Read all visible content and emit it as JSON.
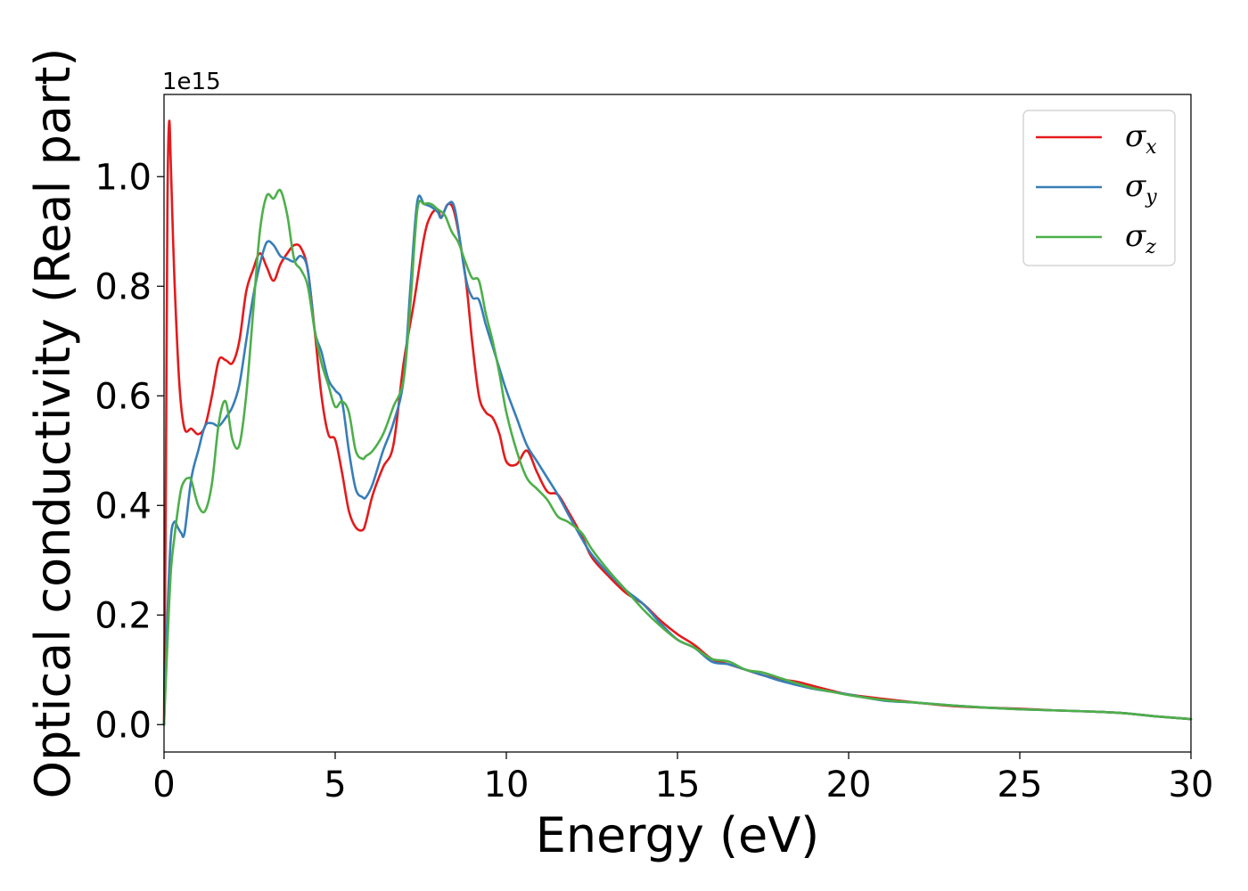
{
  "chart_data": {
    "type": "line",
    "xlabel": "Energy (eV)",
    "ylabel": "Optical conductivity (Real part)",
    "y_offset_text": "1e15",
    "xlim": [
      0,
      30
    ],
    "ylim": [
      -0.05,
      1.15
    ],
    "x_ticks": [
      "0",
      "5",
      "10",
      "15",
      "20",
      "25",
      "30"
    ],
    "x_tick_values": [
      0,
      5,
      10,
      15,
      20,
      25,
      30
    ],
    "y_ticks": [
      "0.0",
      "0.2",
      "0.4",
      "0.6",
      "0.8",
      "1.0"
    ],
    "y_tick_values": [
      0.0,
      0.2,
      0.4,
      0.6,
      0.8,
      1.0
    ],
    "grid": false,
    "legend_position": "upper right",
    "series": [
      {
        "name": "σx",
        "name_base": "σ",
        "name_sub": "x",
        "color": "#e41a1c",
        "x": [
          0,
          0.05,
          0.1,
          0.15,
          0.2,
          0.3,
          0.45,
          0.6,
          0.8,
          1.0,
          1.2,
          1.4,
          1.6,
          1.8,
          2.0,
          2.2,
          2.4,
          2.6,
          2.8,
          3.0,
          3.2,
          3.4,
          3.6,
          3.8,
          4.0,
          4.2,
          4.4,
          4.6,
          4.8,
          5.0,
          5.2,
          5.4,
          5.6,
          5.8,
          5.9,
          6.1,
          6.4,
          6.7,
          7.0,
          7.3,
          7.6,
          7.8,
          8.0,
          8.1,
          8.3,
          8.5,
          8.8,
          9.0,
          9.2,
          9.4,
          9.6,
          9.8,
          10.0,
          10.3,
          10.6,
          10.9,
          11.2,
          11.5,
          11.8,
          12.2,
          12.5,
          13.0,
          13.5,
          14.0,
          14.5,
          15.0,
          15.5,
          16.0,
          16.5,
          17.0,
          17.5,
          18.0,
          18.5,
          19.0,
          19.5,
          20.0,
          21.0,
          22.0,
          23.0,
          24.0,
          25.0,
          26.0,
          27.0,
          28.0,
          29.0,
          30.0
        ],
        "y": [
          0.0,
          0.4,
          0.95,
          1.1,
          1.02,
          0.82,
          0.62,
          0.54,
          0.54,
          0.53,
          0.545,
          0.6,
          0.665,
          0.665,
          0.66,
          0.7,
          0.79,
          0.83,
          0.86,
          0.835,
          0.81,
          0.84,
          0.86,
          0.875,
          0.87,
          0.83,
          0.72,
          0.6,
          0.53,
          0.52,
          0.46,
          0.39,
          0.36,
          0.355,
          0.37,
          0.42,
          0.47,
          0.51,
          0.66,
          0.77,
          0.89,
          0.93,
          0.94,
          0.925,
          0.95,
          0.93,
          0.82,
          0.7,
          0.6,
          0.57,
          0.56,
          0.53,
          0.48,
          0.475,
          0.5,
          0.46,
          0.425,
          0.42,
          0.39,
          0.345,
          0.305,
          0.27,
          0.24,
          0.22,
          0.19,
          0.165,
          0.145,
          0.12,
          0.11,
          0.1,
          0.09,
          0.083,
          0.078,
          0.07,
          0.062,
          0.055,
          0.047,
          0.04,
          0.034,
          0.031,
          0.029,
          0.026,
          0.024,
          0.021,
          0.015,
          0.01
        ]
      },
      {
        "name": "σy",
        "name_base": "σ",
        "name_sub": "y",
        "color": "#377eb8",
        "x": [
          0,
          0.1,
          0.2,
          0.3,
          0.4,
          0.5,
          0.6,
          0.8,
          1.0,
          1.2,
          1.4,
          1.6,
          1.8,
          2.0,
          2.2,
          2.4,
          2.6,
          2.8,
          3.0,
          3.2,
          3.4,
          3.6,
          3.8,
          4.0,
          4.2,
          4.4,
          4.6,
          4.8,
          5.0,
          5.2,
          5.4,
          5.6,
          5.8,
          5.9,
          6.1,
          6.4,
          6.7,
          7.0,
          7.2,
          7.4,
          7.6,
          7.8,
          8.0,
          8.1,
          8.3,
          8.5,
          8.8,
          9.0,
          9.2,
          9.4,
          9.6,
          9.8,
          10.0,
          10.3,
          10.6,
          10.9,
          11.2,
          11.5,
          11.8,
          12.2,
          12.5,
          13.0,
          13.5,
          14.0,
          14.5,
          15.0,
          15.5,
          16.0,
          16.5,
          17.0,
          17.5,
          18.0,
          18.5,
          19.0,
          19.5,
          20.0,
          21.0,
          22.0,
          23.0,
          24.0,
          25.0,
          26.0,
          27.0,
          28.0,
          29.0,
          30.0
        ],
        "y": [
          0.0,
          0.2,
          0.34,
          0.37,
          0.36,
          0.35,
          0.35,
          0.45,
          0.5,
          0.545,
          0.55,
          0.545,
          0.56,
          0.58,
          0.62,
          0.7,
          0.78,
          0.84,
          0.88,
          0.875,
          0.855,
          0.85,
          0.845,
          0.855,
          0.83,
          0.72,
          0.68,
          0.63,
          0.61,
          0.59,
          0.5,
          0.43,
          0.415,
          0.415,
          0.44,
          0.5,
          0.55,
          0.63,
          0.8,
          0.955,
          0.95,
          0.945,
          0.935,
          0.925,
          0.95,
          0.94,
          0.82,
          0.78,
          0.775,
          0.73,
          0.69,
          0.65,
          0.61,
          0.56,
          0.51,
          0.48,
          0.45,
          0.42,
          0.385,
          0.34,
          0.31,
          0.275,
          0.245,
          0.22,
          0.185,
          0.155,
          0.14,
          0.115,
          0.11,
          0.1,
          0.09,
          0.08,
          0.072,
          0.065,
          0.06,
          0.055,
          0.044,
          0.04,
          0.035,
          0.031,
          0.028,
          0.026,
          0.024,
          0.021,
          0.015,
          0.01
        ]
      },
      {
        "name": "σz",
        "name_base": "σ",
        "name_sub": "z",
        "color": "#4daf4a",
        "x": [
          0,
          0.1,
          0.2,
          0.3,
          0.4,
          0.5,
          0.6,
          0.7,
          0.8,
          1.0,
          1.2,
          1.4,
          1.6,
          1.8,
          2.0,
          2.2,
          2.4,
          2.6,
          2.8,
          3.0,
          3.2,
          3.4,
          3.6,
          3.8,
          4.0,
          4.2,
          4.4,
          4.6,
          4.8,
          5.0,
          5.2,
          5.4,
          5.6,
          5.8,
          5.9,
          6.1,
          6.4,
          6.7,
          7.0,
          7.2,
          7.4,
          7.6,
          7.8,
          8.0,
          8.2,
          8.4,
          8.6,
          8.8,
          9.0,
          9.2,
          9.4,
          9.6,
          9.8,
          10.0,
          10.3,
          10.6,
          10.9,
          11.2,
          11.5,
          11.8,
          12.2,
          12.5,
          13.0,
          13.5,
          14.0,
          14.5,
          15.0,
          15.5,
          16.0,
          16.5,
          17.0,
          17.5,
          18.0,
          18.5,
          19.0,
          19.5,
          20.0,
          21.0,
          22.0,
          23.0,
          24.0,
          25.0,
          26.0,
          27.0,
          28.0,
          29.0,
          30.0
        ],
        "y": [
          0.0,
          0.15,
          0.28,
          0.34,
          0.39,
          0.43,
          0.445,
          0.45,
          0.445,
          0.4,
          0.39,
          0.44,
          0.55,
          0.59,
          0.52,
          0.51,
          0.6,
          0.75,
          0.9,
          0.965,
          0.96,
          0.975,
          0.93,
          0.85,
          0.83,
          0.8,
          0.72,
          0.66,
          0.62,
          0.58,
          0.59,
          0.57,
          0.5,
          0.485,
          0.49,
          0.5,
          0.53,
          0.58,
          0.63,
          0.77,
          0.94,
          0.95,
          0.95,
          0.94,
          0.93,
          0.9,
          0.88,
          0.845,
          0.815,
          0.81,
          0.75,
          0.7,
          0.64,
          0.57,
          0.5,
          0.45,
          0.43,
          0.41,
          0.38,
          0.37,
          0.35,
          0.32,
          0.28,
          0.245,
          0.21,
          0.18,
          0.155,
          0.14,
          0.12,
          0.115,
          0.1,
          0.095,
          0.085,
          0.075,
          0.066,
          0.06,
          0.054,
          0.045,
          0.04,
          0.035,
          0.031,
          0.028,
          0.026,
          0.024,
          0.021,
          0.015,
          0.01
        ]
      }
    ]
  }
}
